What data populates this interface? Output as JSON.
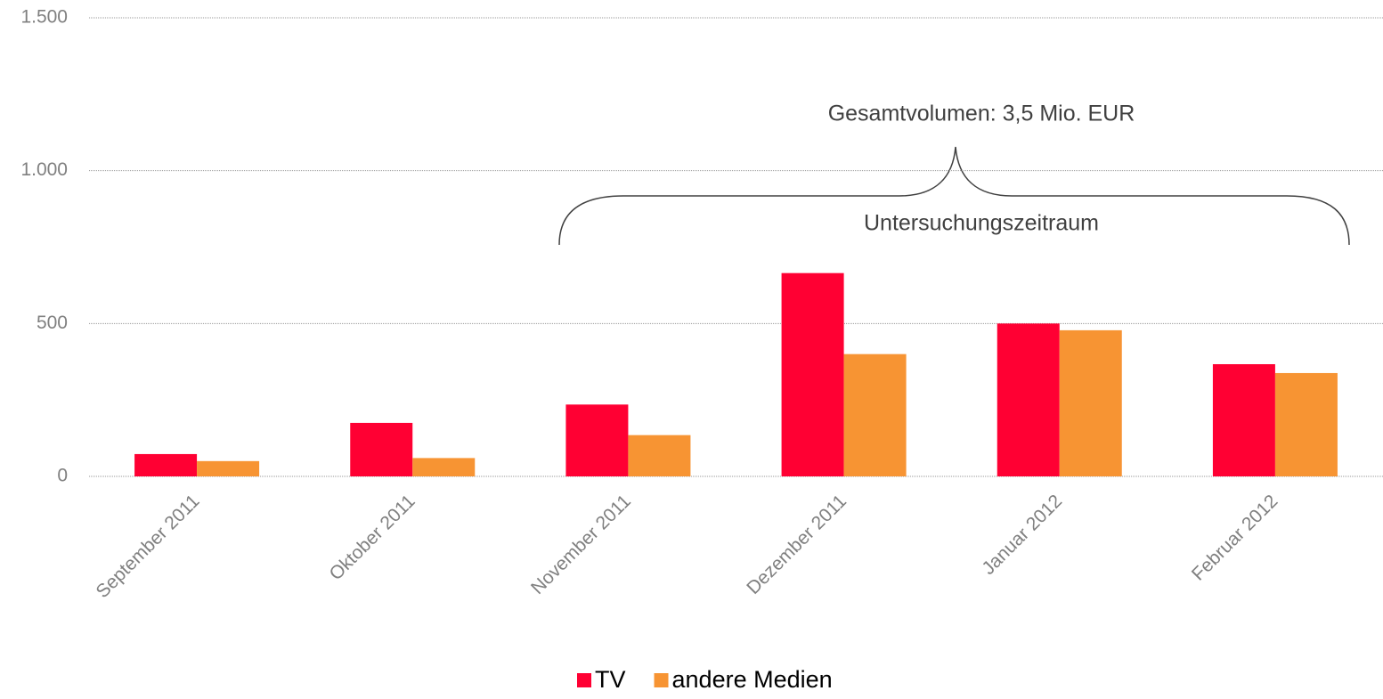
{
  "chart_data": {
    "type": "bar",
    "categories": [
      "September 2011",
      "Oktober 2011",
      "November 2011",
      "Dezember 2011",
      "Januar 2012",
      "Februar 2012"
    ],
    "series": [
      {
        "name": "TV",
        "color": "#ff0033",
        "values": [
          73,
          175,
          235,
          665,
          500,
          367
        ]
      },
      {
        "name": "andere Medien",
        "color": "#f79433",
        "values": [
          50,
          60,
          135,
          400,
          478,
          338
        ]
      }
    ],
    "ylim": [
      0,
      1500
    ],
    "yticks": [
      0,
      500,
      {
        "value": 1000,
        "label": "1.000"
      },
      {
        "value": 1500,
        "label": "1.500"
      }
    ],
    "grid": true,
    "legend": "bottom",
    "annotations": [
      "Gesamtvolumen: 3,5 Mio. EUR",
      "Untersuchungszeitraum"
    ]
  }
}
